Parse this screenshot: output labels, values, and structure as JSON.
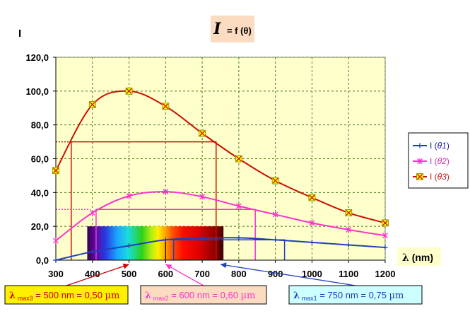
{
  "chart_data": {
    "type": "line",
    "title": {
      "italic": "I",
      "rest": "= f (θ)"
    },
    "ylabel": "I",
    "xlabel_bold": "λ",
    "xlabel_rest": " (nm)",
    "x": [
      300,
      400,
      500,
      600,
      700,
      800,
      900,
      1000,
      1100,
      1200
    ],
    "xlim": [
      300,
      1200
    ],
    "ylim": [
      0,
      120
    ],
    "xticks": [
      "300",
      "400",
      "500",
      "600",
      "700",
      "800",
      "900",
      "1000",
      "1100",
      "1200"
    ],
    "yticks": [
      "0,0",
      "20,0",
      "40,0",
      "60,0",
      "80,0",
      "100,0",
      "120,0"
    ],
    "grid": true,
    "legend_position": "right",
    "series": [
      {
        "name": "I (θ1)",
        "label_main": "I (",
        "label_var": "θ1",
        "label_end": ")",
        "color": "#1f3fbf",
        "marker": "plus",
        "label_color": "#1a1aa8",
        "values": [
          0,
          5,
          8.5,
          12,
          13,
          13.2,
          12,
          10.5,
          9,
          7.5
        ]
      },
      {
        "name": "I (θ2)",
        "label_main": "I (",
        "label_var": "θ2",
        "label_end": ")",
        "color": "#ff33cc",
        "marker": "star",
        "label_color": "#cc33aa",
        "values": [
          11.5,
          28,
          38,
          40.5,
          37.5,
          32,
          27,
          22,
          18,
          14.5
        ]
      },
      {
        "name": "I (θ3)",
        "label_main": "I (",
        "label_var": "θ3",
        "label_end": ")",
        "color": "#cc1100",
        "marker": "x-box",
        "label_color": "#c81e1e",
        "values": [
          53,
          92,
          100,
          91,
          75,
          60,
          47,
          37,
          28,
          22
        ]
      }
    ],
    "annotations": [
      {
        "text_bold": "λ",
        "text_sub": " max3",
        "text_rest": " = 500 nm = 0,50 ",
        "text_unit": "µm",
        "color": "#cc0000",
        "line_color": "#cc0000",
        "box_bg": "#fff000"
      },
      {
        "text_bold": "λ",
        "text_sub": " max2",
        "text_rest": " = 600 nm = 0,60 ",
        "text_unit": "µm",
        "color": "#ff33cc",
        "line_color": "#ff33cc",
        "box_bg": "#fbdcc0"
      },
      {
        "text_bold": "λ",
        "text_sub": " max1",
        "text_rest": " = 750 nm = 0,75 ",
        "text_unit": "µm",
        "color": "#1f3fbf",
        "line_color": "#1f3fbf",
        "box_bg": "#ccffff"
      }
    ],
    "visible_spectrum_nm": [
      380,
      760
    ],
    "colors": {
      "plot_bg": "#ffffcc",
      "title_box": "#fbdcc0",
      "grid": "#4a7a1a"
    }
  }
}
